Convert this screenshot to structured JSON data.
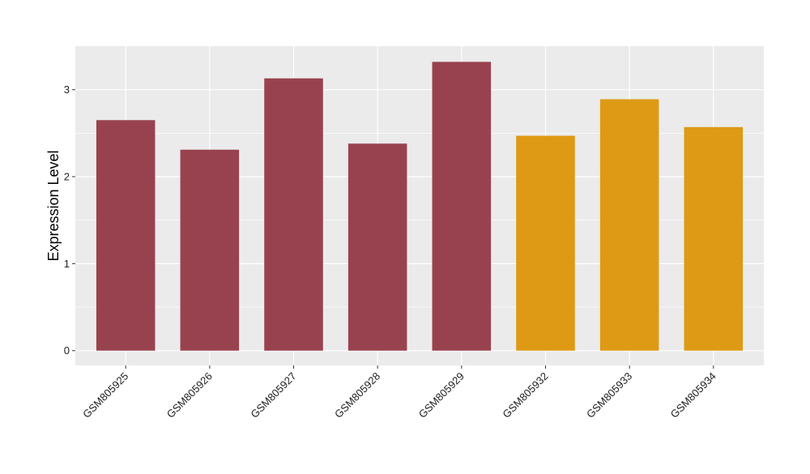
{
  "chart_data": {
    "type": "bar",
    "title": "",
    "xlabel": "",
    "ylabel": "Expression Level",
    "categories": [
      "GSM805925",
      "GSM805926",
      "GSM805927",
      "GSM805928",
      "GSM805929",
      "GSM805932",
      "GSM805933",
      "GSM805934"
    ],
    "values": [
      2.65,
      2.31,
      3.13,
      2.38,
      3.32,
      2.47,
      2.89,
      2.57
    ],
    "bar_colors": [
      "#99424f",
      "#99424f",
      "#99424f",
      "#99424f",
      "#99424f",
      "#de9a14",
      "#de9a14",
      "#de9a14"
    ],
    "yticks": [
      0,
      1,
      2,
      3
    ],
    "ylim": [
      -0.17,
      3.5
    ],
    "grid": true,
    "panel_background": "#ebebeb",
    "gridline_color": "#ffffff"
  }
}
